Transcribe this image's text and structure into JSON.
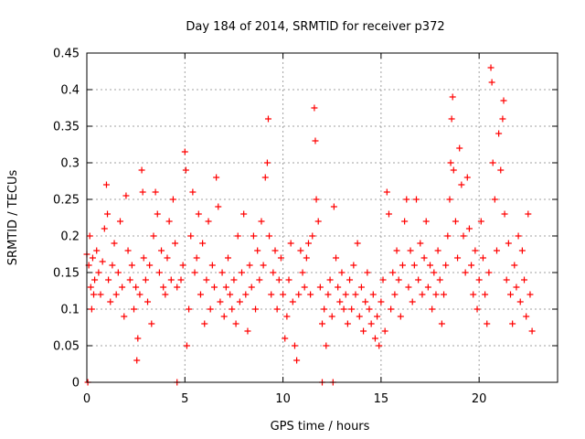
{
  "chart_data": {
    "type": "scatter",
    "title": "Day 184 of 2014, SRMTID for receiver p372",
    "xlabel": "GPS time / hours",
    "ylabel": "SRMTID / TECUs",
    "xlim": [
      0,
      24
    ],
    "ylim": [
      0,
      0.45
    ],
    "x_ticks": [
      0,
      5,
      10,
      15,
      20
    ],
    "x_tick_labels": [
      "0",
      "5",
      "10",
      "15",
      "20"
    ],
    "y_ticks": [
      0,
      0.05,
      0.1,
      0.15,
      0.2,
      0.25,
      0.3,
      0.35,
      0.4,
      0.45
    ],
    "y_tick_labels": [
      "0",
      "0.05",
      "0.1",
      "0.15",
      "0.2",
      "0.25",
      "0.3",
      "0.35",
      "0.4",
      "0.45"
    ],
    "grid": true,
    "marker": "+",
    "color": "#ff0000",
    "series": [
      {
        "name": "SRMTID",
        "points": [
          [
            0.0,
            0.175
          ],
          [
            0.1,
            0.16
          ],
          [
            0.15,
            0.2
          ],
          [
            0.2,
            0.13
          ],
          [
            0.25,
            0.1
          ],
          [
            0.3,
            0.17
          ],
          [
            0.35,
            0.12
          ],
          [
            0.4,
            0.14
          ],
          [
            0.5,
            0.18
          ],
          [
            0.6,
            0.15
          ],
          [
            0.7,
            0.12
          ],
          [
            0.8,
            0.165
          ],
          [
            0.9,
            0.21
          ],
          [
            1.0,
            0.27
          ],
          [
            1.05,
            0.23
          ],
          [
            1.1,
            0.14
          ],
          [
            1.2,
            0.11
          ],
          [
            1.3,
            0.16
          ],
          [
            1.4,
            0.19
          ],
          [
            1.5,
            0.12
          ],
          [
            1.6,
            0.15
          ],
          [
            1.7,
            0.22
          ],
          [
            1.8,
            0.13
          ],
          [
            1.9,
            0.09
          ],
          [
            2.0,
            0.255
          ],
          [
            2.1,
            0.18
          ],
          [
            2.2,
            0.14
          ],
          [
            2.3,
            0.16
          ],
          [
            2.4,
            0.1
          ],
          [
            2.5,
            0.13
          ],
          [
            2.55,
            0.03
          ],
          [
            2.6,
            0.06
          ],
          [
            2.7,
            0.12
          ],
          [
            2.8,
            0.29
          ],
          [
            2.85,
            0.26
          ],
          [
            2.9,
            0.17
          ],
          [
            3.0,
            0.14
          ],
          [
            3.1,
            0.11
          ],
          [
            3.2,
            0.16
          ],
          [
            3.3,
            0.08
          ],
          [
            3.4,
            0.2
          ],
          [
            3.5,
            0.26
          ],
          [
            3.6,
            0.23
          ],
          [
            3.7,
            0.15
          ],
          [
            3.8,
            0.18
          ],
          [
            3.9,
            0.13
          ],
          [
            4.0,
            0.12
          ],
          [
            4.1,
            0.17
          ],
          [
            4.2,
            0.22
          ],
          [
            4.3,
            0.14
          ],
          [
            4.4,
            0.25
          ],
          [
            4.5,
            0.19
          ],
          [
            4.6,
            0.13
          ],
          [
            4.8,
            0.14
          ],
          [
            4.9,
            0.16
          ],
          [
            5.0,
            0.315
          ],
          [
            5.05,
            0.29
          ],
          [
            5.1,
            0.05
          ],
          [
            5.2,
            0.1
          ],
          [
            5.3,
            0.2
          ],
          [
            5.4,
            0.26
          ],
          [
            5.5,
            0.15
          ],
          [
            5.6,
            0.17
          ],
          [
            5.7,
            0.23
          ],
          [
            5.8,
            0.12
          ],
          [
            5.9,
            0.19
          ],
          [
            6.0,
            0.08
          ],
          [
            6.1,
            0.14
          ],
          [
            6.2,
            0.22
          ],
          [
            6.3,
            0.1
          ],
          [
            6.4,
            0.16
          ],
          [
            6.5,
            0.13
          ],
          [
            6.6,
            0.28
          ],
          [
            6.7,
            0.24
          ],
          [
            6.8,
            0.11
          ],
          [
            6.9,
            0.15
          ],
          [
            7.0,
            0.09
          ],
          [
            7.1,
            0.13
          ],
          [
            7.2,
            0.17
          ],
          [
            7.3,
            0.12
          ],
          [
            7.4,
            0.1
          ],
          [
            7.5,
            0.14
          ],
          [
            7.6,
            0.08
          ],
          [
            7.7,
            0.2
          ],
          [
            7.8,
            0.11
          ],
          [
            7.9,
            0.15
          ],
          [
            8.0,
            0.23
          ],
          [
            8.1,
            0.12
          ],
          [
            8.2,
            0.07
          ],
          [
            8.3,
            0.16
          ],
          [
            8.4,
            0.13
          ],
          [
            8.5,
            0.2
          ],
          [
            8.6,
            0.1
          ],
          [
            8.7,
            0.18
          ],
          [
            8.8,
            0.14
          ],
          [
            8.9,
            0.22
          ],
          [
            9.0,
            0.16
          ],
          [
            9.1,
            0.28
          ],
          [
            9.2,
            0.3
          ],
          [
            9.25,
            0.36
          ],
          [
            9.3,
            0.2
          ],
          [
            9.4,
            0.12
          ],
          [
            9.5,
            0.15
          ],
          [
            9.6,
            0.18
          ],
          [
            9.7,
            0.1
          ],
          [
            9.8,
            0.14
          ],
          [
            9.9,
            0.17
          ],
          [
            10.0,
            0.12
          ],
          [
            10.1,
            0.06
          ],
          [
            10.2,
            0.09
          ],
          [
            10.3,
            0.14
          ],
          [
            10.4,
            0.19
          ],
          [
            10.5,
            0.11
          ],
          [
            10.6,
            0.05
          ],
          [
            10.7,
            0.03
          ],
          [
            10.8,
            0.12
          ],
          [
            10.9,
            0.18
          ],
          [
            11.0,
            0.15
          ],
          [
            11.1,
            0.13
          ],
          [
            11.2,
            0.17
          ],
          [
            11.3,
            0.19
          ],
          [
            11.4,
            0.12
          ],
          [
            11.5,
            0.2
          ],
          [
            11.6,
            0.375
          ],
          [
            11.65,
            0.33
          ],
          [
            11.7,
            0.25
          ],
          [
            11.8,
            0.22
          ],
          [
            11.9,
            0.13
          ],
          [
            12.0,
            0.08
          ],
          [
            12.1,
            0.1
          ],
          [
            12.2,
            0.05
          ],
          [
            12.3,
            0.12
          ],
          [
            12.4,
            0.14
          ],
          [
            12.5,
            0.09
          ],
          [
            12.6,
            0.24
          ],
          [
            12.7,
            0.17
          ],
          [
            12.8,
            0.13
          ],
          [
            12.9,
            0.11
          ],
          [
            13.0,
            0.15
          ],
          [
            13.1,
            0.1
          ],
          [
            13.2,
            0.12
          ],
          [
            13.3,
            0.08
          ],
          [
            13.4,
            0.14
          ],
          [
            13.5,
            0.1
          ],
          [
            13.6,
            0.16
          ],
          [
            13.7,
            0.12
          ],
          [
            13.8,
            0.19
          ],
          [
            13.9,
            0.09
          ],
          [
            14.0,
            0.13
          ],
          [
            14.1,
            0.07
          ],
          [
            14.2,
            0.11
          ],
          [
            14.3,
            0.15
          ],
          [
            14.4,
            0.1
          ],
          [
            14.5,
            0.08
          ],
          [
            14.6,
            0.12
          ],
          [
            14.7,
            0.06
          ],
          [
            14.8,
            0.09
          ],
          [
            14.9,
            0.05
          ],
          [
            15.0,
            0.11
          ],
          [
            15.1,
            0.14
          ],
          [
            15.2,
            0.07
          ],
          [
            15.3,
            0.26
          ],
          [
            15.4,
            0.23
          ],
          [
            15.5,
            0.1
          ],
          [
            15.6,
            0.15
          ],
          [
            15.7,
            0.12
          ],
          [
            15.8,
            0.18
          ],
          [
            15.9,
            0.14
          ],
          [
            16.0,
            0.09
          ],
          [
            16.1,
            0.16
          ],
          [
            16.2,
            0.22
          ],
          [
            16.3,
            0.25
          ],
          [
            16.4,
            0.13
          ],
          [
            16.5,
            0.18
          ],
          [
            16.6,
            0.11
          ],
          [
            16.7,
            0.16
          ],
          [
            16.8,
            0.25
          ],
          [
            16.9,
            0.14
          ],
          [
            17.0,
            0.19
          ],
          [
            17.1,
            0.12
          ],
          [
            17.2,
            0.17
          ],
          [
            17.3,
            0.22
          ],
          [
            17.4,
            0.13
          ],
          [
            17.5,
            0.16
          ],
          [
            17.6,
            0.1
          ],
          [
            17.7,
            0.15
          ],
          [
            17.8,
            0.12
          ],
          [
            17.9,
            0.18
          ],
          [
            18.0,
            0.14
          ],
          [
            18.1,
            0.08
          ],
          [
            18.2,
            0.12
          ],
          [
            18.3,
            0.16
          ],
          [
            18.4,
            0.2
          ],
          [
            18.5,
            0.25
          ],
          [
            18.55,
            0.3
          ],
          [
            18.6,
            0.36
          ],
          [
            18.65,
            0.39
          ],
          [
            18.7,
            0.29
          ],
          [
            18.8,
            0.22
          ],
          [
            18.9,
            0.17
          ],
          [
            19.0,
            0.32
          ],
          [
            19.1,
            0.27
          ],
          [
            19.2,
            0.2
          ],
          [
            19.3,
            0.15
          ],
          [
            19.4,
            0.28
          ],
          [
            19.5,
            0.21
          ],
          [
            19.6,
            0.16
          ],
          [
            19.7,
            0.12
          ],
          [
            19.8,
            0.18
          ],
          [
            19.9,
            0.1
          ],
          [
            20.0,
            0.14
          ],
          [
            20.1,
            0.22
          ],
          [
            20.2,
            0.17
          ],
          [
            20.3,
            0.12
          ],
          [
            20.4,
            0.08
          ],
          [
            20.5,
            0.15
          ],
          [
            20.6,
            0.43
          ],
          [
            20.65,
            0.41
          ],
          [
            20.7,
            0.3
          ],
          [
            20.8,
            0.25
          ],
          [
            20.9,
            0.18
          ],
          [
            21.0,
            0.34
          ],
          [
            21.1,
            0.29
          ],
          [
            21.2,
            0.36
          ],
          [
            21.25,
            0.385
          ],
          [
            21.3,
            0.23
          ],
          [
            21.4,
            0.14
          ],
          [
            21.5,
            0.19
          ],
          [
            21.6,
            0.12
          ],
          [
            21.7,
            0.08
          ],
          [
            21.8,
            0.16
          ],
          [
            21.9,
            0.13
          ],
          [
            22.0,
            0.2
          ],
          [
            22.1,
            0.11
          ],
          [
            22.2,
            0.18
          ],
          [
            22.3,
            0.14
          ],
          [
            22.4,
            0.09
          ],
          [
            22.5,
            0.23
          ],
          [
            22.6,
            0.12
          ],
          [
            22.7,
            0.07
          ],
          [
            0.05,
            0.0
          ],
          [
            4.6,
            0.0
          ],
          [
            12.0,
            0.0
          ],
          [
            12.55,
            0.0
          ]
        ]
      }
    ]
  }
}
